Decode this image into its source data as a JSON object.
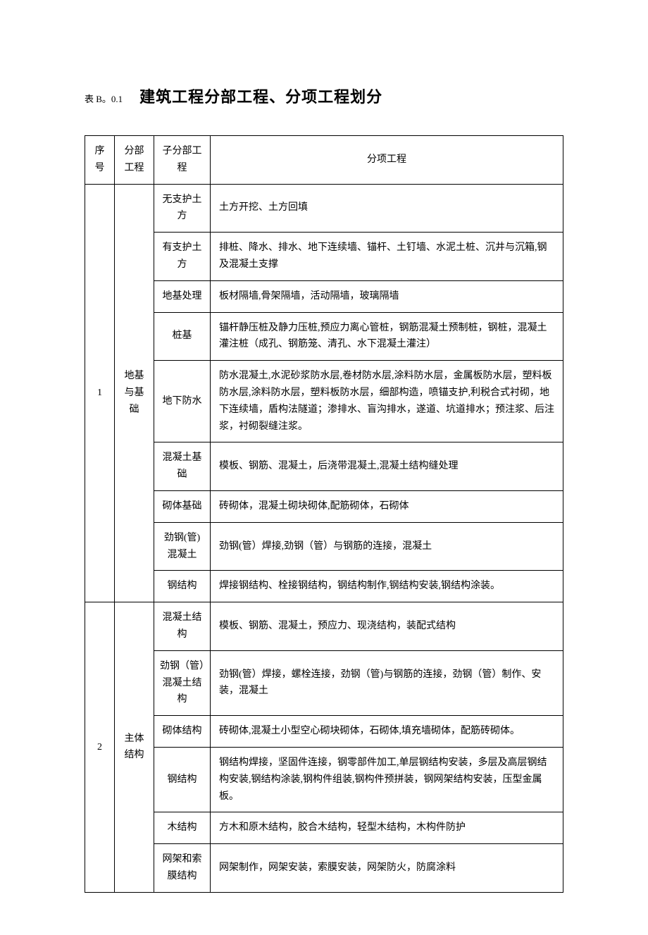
{
  "header": {
    "table_label": "表 B。0.1",
    "main_title": "建筑工程分部工程、分项工程划分"
  },
  "columns": {
    "seq": "序号",
    "part": "分部工程",
    "subpart": "子分部工程",
    "item": "分项工程"
  },
  "sections": [
    {
      "seq": "1",
      "part": "地基与基础",
      "rows": [
        {
          "subpart": "无支护土方",
          "item": "土方开挖、土方回填"
        },
        {
          "subpart": "有支护土方",
          "item": "排桩、降水、排水、地下连续墙、锚杆、土钉墙、水泥土桩、沉井与沉箱,钢及混凝土支撑"
        },
        {
          "subpart": "地基处理",
          "item": "板材隔墙,骨架隔墙，活动隔墙，玻璃隔墙"
        },
        {
          "subpart": "桩基",
          "item": "锚杆静压桩及静力压桩,预应力离心管桩，钢筋混凝土预制桩，钢桩，混凝土灌注桩（成孔、钢筋笼、清孔、水下混凝土灌注）"
        },
        {
          "subpart": "地下防水",
          "item": "防水混凝土,水泥砂浆防水层,卷材防水层,涂料防水层，金属板防水层，塑料板防水层,涂料防水层，塑料板防水层，细部构造，喷锚支护,利税合式衬砌，地下连续墙，盾构法隧道；渗排水、盲沟排水，遂道、坑道排水；预注浆、后注浆，衬砌裂缝注浆。"
        },
        {
          "subpart": "混凝土基础",
          "item": "模板、钢筋、混凝土，后浇带混凝土,混凝土结构缝处理"
        },
        {
          "subpart": "砌体基础",
          "item": "砖砌体，混凝土砌块砌体,配筋砌体，石砌体"
        },
        {
          "subpart": "劲钢(管)混凝土",
          "item": "劲钢(管）焊接,劲钢（管）与钢筋的连接，混凝土"
        },
        {
          "subpart": "钢结构",
          "item": "焊接钢结构、栓接钢结构，钢结构制作,钢结构安装,钢结构涂装。"
        }
      ]
    },
    {
      "seq": "2",
      "part": "主体结构",
      "rows": [
        {
          "subpart": "混凝土结构",
          "item": "模板、钢筋、混凝土，预应力、现浇结构，装配式结构"
        },
        {
          "subpart": "劲钢（管）混凝土结构",
          "item": "劲钢(管）焊接，螺栓连接，劲钢（管)与钢筋的连接，劲钢（管）制作、安装，混凝土"
        },
        {
          "subpart": "砌体结构",
          "item": "砖砌体,混凝土小型空心砌块砌体，石砌体,填充墙砌体，配筋砖砌体。"
        },
        {
          "subpart": "钢结构",
          "item": "钢结构焊接，坚固件连接，钢零部件加工,单层钢结构安装，多层及高层钢结构安装,钢结构涂装,钢构件组装,钢构件预拼装，钢网架结构安装，压型金属板。"
        },
        {
          "subpart": "木结构",
          "item": "方木和原木结构，胶合木结构，轻型木结构，木构件防护"
        },
        {
          "subpart": "网架和索膜结构",
          "item": "网架制作，网架安装，索膜安装，网架防火，防腐涂料"
        }
      ]
    }
  ],
  "style": {
    "background_color": "#ffffff",
    "text_color": "#000000",
    "border_color": "#000000",
    "title_fontsize": 22,
    "label_fontsize": 13,
    "cell_fontsize": 14
  }
}
